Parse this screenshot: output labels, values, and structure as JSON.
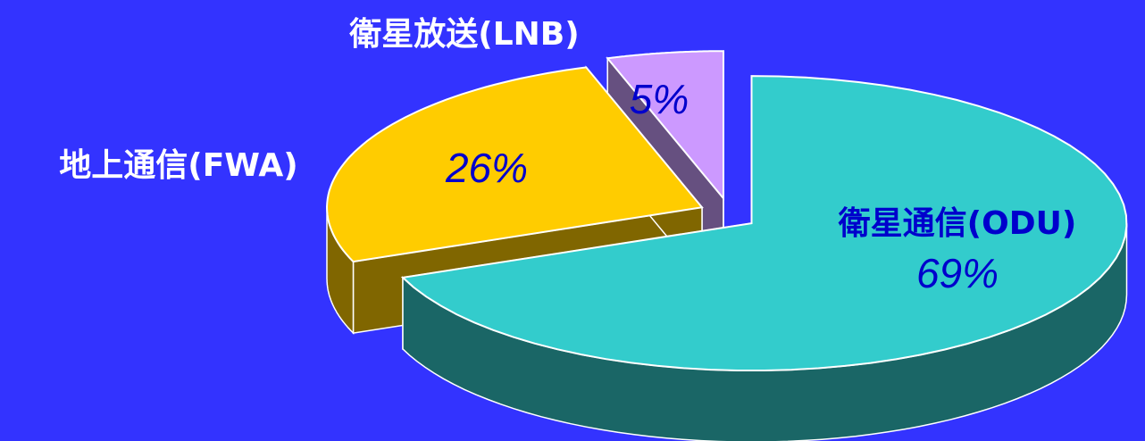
{
  "chart_data": {
    "type": "pie3d",
    "categories": [
      "衛星通信(ODU)",
      "地上通信(FWA)",
      "衛星放送(LNB)"
    ],
    "values": [
      69,
      26,
      5
    ],
    "value_labels": [
      "69%",
      "26%",
      "5%"
    ],
    "colors": [
      "#33cccc",
      "#ffcc00",
      "#cc99ff"
    ],
    "side_colors": [
      "#1a6666",
      "#806600",
      "#665080"
    ]
  }
}
